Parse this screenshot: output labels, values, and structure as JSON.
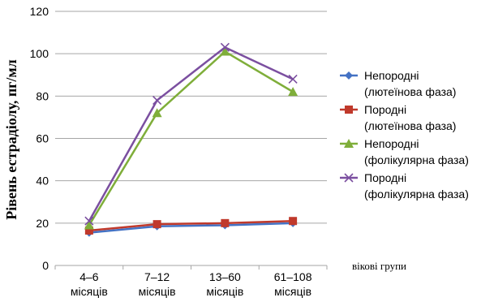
{
  "chart_data": {
    "type": "line",
    "title": "",
    "ylabel": "Рівень естрадіолу, пг/мл",
    "xlabel": "вікові групи",
    "ylim": [
      0,
      120
    ],
    "yticks": [
      0,
      20,
      40,
      60,
      80,
      100,
      120
    ],
    "grid": "horizontal",
    "legend_position": "right",
    "categories": [
      [
        "4–6",
        "місяців"
      ],
      [
        "7–12",
        "місяців"
      ],
      [
        "13–60",
        "місяців"
      ],
      [
        "61–108",
        "місяців"
      ]
    ],
    "series": [
      {
        "name": [
          "Непородні",
          "(лютеїнова фаза)"
        ],
        "values": [
          15.5,
          18.5,
          19,
          20
        ],
        "color": "#4472C4",
        "marker": "diamond"
      },
      {
        "name": [
          "Породні",
          "(лютеїнова фаза)"
        ],
        "values": [
          16.5,
          19.5,
          20,
          21
        ],
        "color": "#C0392B",
        "marker": "square"
      },
      {
        "name": [
          "Непородні",
          "(фолікулярна фаза)"
        ],
        "values": [
          19,
          72,
          101,
          82
        ],
        "color": "#7FAE3A",
        "marker": "triangle"
      },
      {
        "name": [
          "Породні",
          "(фолікулярна фаза)"
        ],
        "values": [
          21,
          78,
          103,
          88
        ],
        "color": "#7B4FA0",
        "marker": "x"
      }
    ]
  }
}
